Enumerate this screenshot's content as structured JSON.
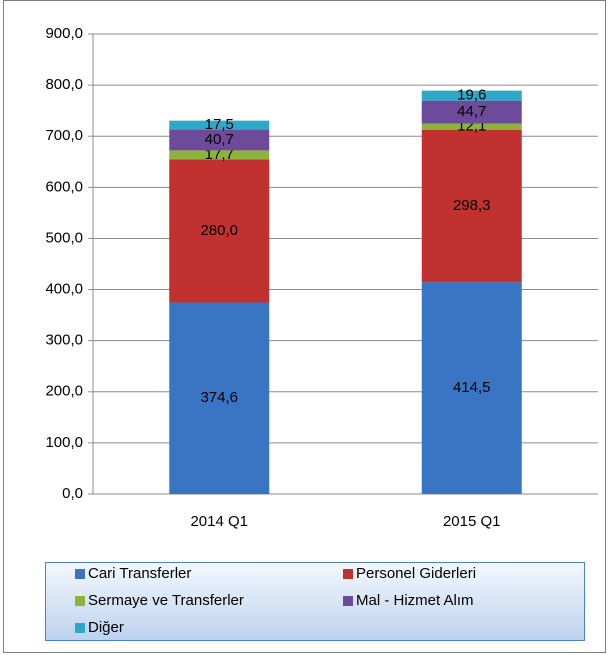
{
  "chart_data": {
    "type": "stacked_bar",
    "categories": [
      "2014 Q1",
      "2015 Q1"
    ],
    "series": [
      {
        "name": "Cari Transferler",
        "color": "#3a75c4",
        "values": [
          374.6,
          414.5
        ],
        "value_labels": [
          "374,6",
          "414,5"
        ]
      },
      {
        "name": "Personel Giderleri",
        "color": "#c0312f",
        "values": [
          280.0,
          298.3
        ],
        "value_labels": [
          "280,0",
          "298,3"
        ]
      },
      {
        "name": "Sermaye ve Transferler",
        "color": "#8db33a",
        "values": [
          17.7,
          12.1
        ],
        "value_labels": [
          "17,7",
          "12,1"
        ]
      },
      {
        "name": "Mal - Hizmet Alım",
        "color": "#6e4b9a",
        "values": [
          40.7,
          44.7
        ],
        "value_labels": [
          "40,7",
          "44,7"
        ]
      },
      {
        "name": "Diğer",
        "color": "#2ea8c8",
        "values": [
          17.5,
          19.6
        ],
        "value_labels": [
          "17,5",
          "19,6"
        ]
      }
    ],
    "ylim": [
      0,
      900
    ],
    "yticks": [
      {
        "value": 0,
        "label": "0,0"
      },
      {
        "value": 100,
        "label": "100,0"
      },
      {
        "value": 200,
        "label": "200,0"
      },
      {
        "value": 300,
        "label": "300,0"
      },
      {
        "value": 400,
        "label": "400,0"
      },
      {
        "value": 500,
        "label": "500,0"
      },
      {
        "value": 600,
        "label": "600,0"
      },
      {
        "value": 700,
        "label": "700,0"
      },
      {
        "value": 800,
        "label": "800,0"
      },
      {
        "value": 900,
        "label": "900,0"
      }
    ],
    "grid": true
  }
}
